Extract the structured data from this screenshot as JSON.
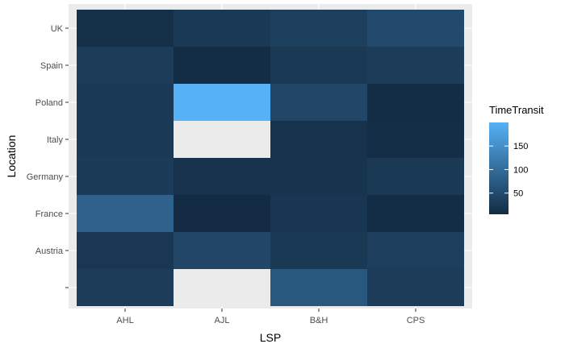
{
  "chart_data": {
    "type": "heatmap",
    "xlabel": "LSP",
    "ylabel": "Location",
    "x_categories": [
      "AHL",
      "AJL",
      "B&H",
      "CPS"
    ],
    "y_categories": [
      "",
      "Austria",
      "France",
      "Germany",
      "Italy",
      "Poland",
      "Spain",
      "UK"
    ],
    "cells": [
      {
        "x": "AHL",
        "y": "",
        "value": 30
      },
      {
        "x": "AJL",
        "y": "",
        "value": null
      },
      {
        "x": "B&H",
        "y": "",
        "value": 70
      },
      {
        "x": "CPS",
        "y": "",
        "value": 30
      },
      {
        "x": "AHL",
        "y": "Austria",
        "value": 22
      },
      {
        "x": "AJL",
        "y": "Austria",
        "value": 45
      },
      {
        "x": "B&H",
        "y": "Austria",
        "value": 25
      },
      {
        "x": "CPS",
        "y": "Austria",
        "value": 33
      },
      {
        "x": "AHL",
        "y": "France",
        "value": 85
      },
      {
        "x": "AJL",
        "y": "France",
        "value": 5
      },
      {
        "x": "B&H",
        "y": "France",
        "value": 20
      },
      {
        "x": "CPS",
        "y": "France",
        "value": 8
      },
      {
        "x": "AHL",
        "y": "Germany",
        "value": 28
      },
      {
        "x": "AJL",
        "y": "Germany",
        "value": 15
      },
      {
        "x": "B&H",
        "y": "Germany",
        "value": 18
      },
      {
        "x": "CPS",
        "y": "Germany",
        "value": 25
      },
      {
        "x": "AHL",
        "y": "Italy",
        "value": 25
      },
      {
        "x": "AJL",
        "y": "Italy",
        "value": null
      },
      {
        "x": "B&H",
        "y": "Italy",
        "value": 15
      },
      {
        "x": "CPS",
        "y": "Italy",
        "value": 10
      },
      {
        "x": "AHL",
        "y": "Poland",
        "value": 25
      },
      {
        "x": "AJL",
        "y": "Poland",
        "value": 200
      },
      {
        "x": "B&H",
        "y": "Poland",
        "value": 45
      },
      {
        "x": "CPS",
        "y": "Poland",
        "value": 8
      },
      {
        "x": "AHL",
        "y": "Spain",
        "value": 30
      },
      {
        "x": "AJL",
        "y": "Spain",
        "value": 8
      },
      {
        "x": "B&H",
        "y": "Spain",
        "value": 25
      },
      {
        "x": "CPS",
        "y": "Spain",
        "value": 30
      },
      {
        "x": "AHL",
        "y": "UK",
        "value": 12
      },
      {
        "x": "AJL",
        "y": "UK",
        "value": 25
      },
      {
        "x": "B&H",
        "y": "UK",
        "value": 35
      },
      {
        "x": "CPS",
        "y": "UK",
        "value": 50
      }
    ],
    "value_range": [
      5,
      200
    ],
    "legend": {
      "title": "TimeTransit",
      "breaks": [
        50,
        100,
        150
      ],
      "position": "right"
    },
    "colors": {
      "low": "#132B43",
      "high": "#56B1F7",
      "na": "#EBEBEB",
      "panel": "#EBEBEB",
      "grid": "#FFFFFF"
    },
    "grid": true
  }
}
